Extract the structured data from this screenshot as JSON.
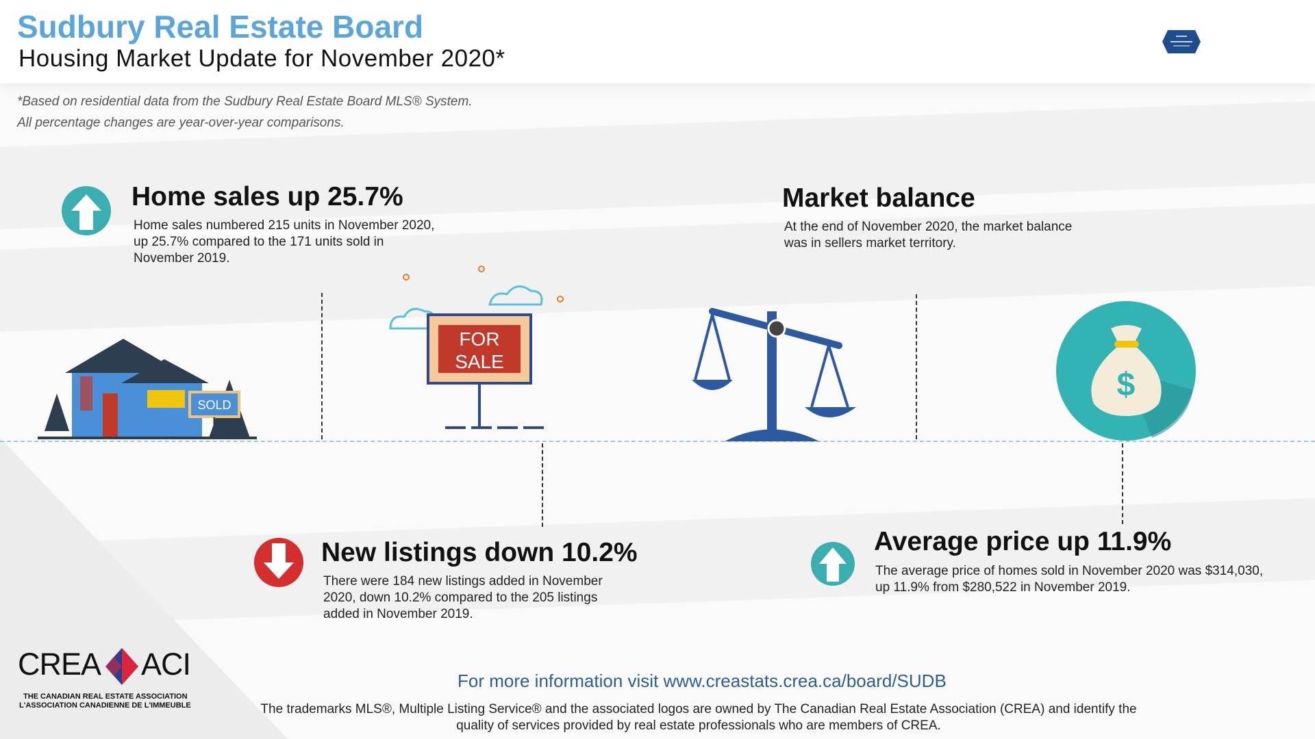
{
  "header": {
    "board_name": "Sudbury Real Estate Board",
    "subtitle": "Housing Market Update for November 2020*"
  },
  "notes": {
    "line1": "*Based on residential data from the Sudbury Real Estate Board MLS® System.",
    "line2": "All percentage changes are year-over-year comparisons."
  },
  "stats": {
    "home_sales": {
      "title": "Home sales up 25.7%",
      "body": "Home sales numbered 215 units in November 2020, up 25.7% compared to the 171 units sold in November 2019.",
      "direction": "up"
    },
    "market_balance": {
      "title": "Market balance",
      "body": "At the end of November 2020, the market balance was in sellers market territory."
    },
    "new_listings": {
      "title": "New listings down 10.2%",
      "body": "There were 184 new listings added in November 2020, down 10.2% compared to the 205 listings added in November 2019.",
      "direction": "down"
    },
    "average_price": {
      "title": "Average price up 11.9%",
      "body": "The average price of homes sold in November 2020 was $314,030, up 11.9% from $280,522 in November 2019.",
      "direction": "up"
    }
  },
  "illustrations": {
    "sold_sign": "SOLD",
    "for_sale_line1": "FOR",
    "for_sale_line2": "SALE",
    "money_symbol": "$"
  },
  "footer": {
    "link_text": "For more information visit www.creastats.crea.ca/board/SUDB",
    "trademark_note": "The trademarks MLS®, Multiple Listing Service® and the associated logos are owned by The Canadian Real Estate Association (CREA) and identify the quality of services provided by real estate professionals who are members of CREA.",
    "crea_left": "CREA",
    "crea_right": "ACI",
    "crea_sub1": "THE CANADIAN REAL ESTATE ASSOCIATION",
    "crea_sub2": "L'ASSOCIATION CANADIENNE DE L'IMMEUBLE"
  },
  "colors": {
    "title_blue": "#5aa5db",
    "up_teal": "#3aaeb0",
    "down_red": "#d32f2f",
    "link_blue": "#2e5e8c"
  },
  "icons": [
    "arrow-up-icon",
    "arrow-down-icon",
    "board-logo-icon",
    "crea-logo-icon"
  ]
}
